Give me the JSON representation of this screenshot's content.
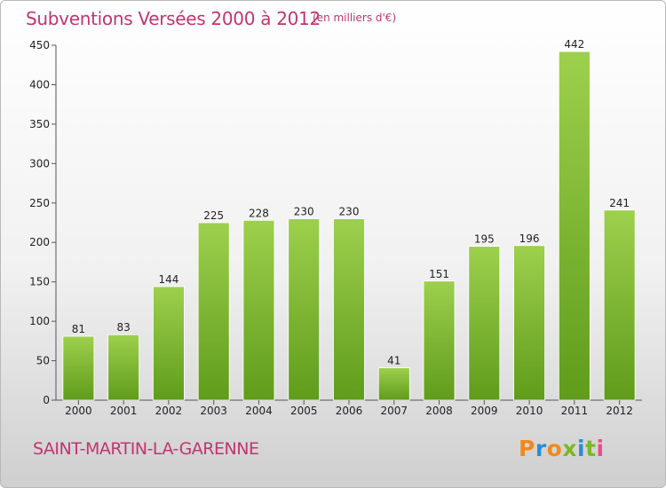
{
  "header": {
    "title": "Subventions Versées 2000 à 2012",
    "subtitle": "(en milliers d'€)"
  },
  "footer": {
    "commune": "SAINT-MARTIN-LA-GARENNE",
    "logo_text": "Proxiti"
  },
  "colors": {
    "title": "#c03570",
    "bar_top": "#9dd04d",
    "bar_bottom": "#5f9c1a",
    "logo_letters": [
      "#f08a1c",
      "#2a8dd4",
      "#f08a1c",
      "#7bb827",
      "#2a8dd4",
      "#7bb827",
      "#e84f8a"
    ]
  },
  "chart_data": {
    "type": "bar",
    "categories": [
      "2000",
      "2001",
      "2002",
      "2003",
      "2004",
      "2005",
      "2006",
      "2007",
      "2008",
      "2009",
      "2010",
      "2011",
      "2012"
    ],
    "values": [
      81,
      83,
      144,
      225,
      228,
      230,
      230,
      41,
      151,
      195,
      196,
      442,
      241
    ],
    "ylim": [
      0,
      450
    ],
    "yticks": [
      0,
      50,
      100,
      150,
      200,
      250,
      300,
      350,
      400,
      450
    ],
    "grid": false,
    "data_labels": true
  }
}
